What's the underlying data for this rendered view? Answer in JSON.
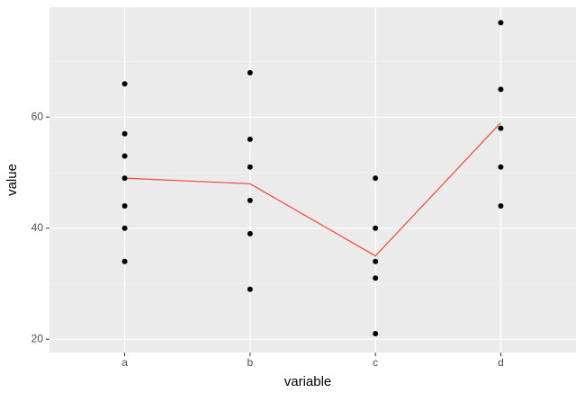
{
  "chart_data": {
    "type": "strip",
    "x_label": "variable",
    "y_label": "value",
    "categories": [
      "a",
      "b",
      "c",
      "d"
    ],
    "points": [
      [
        66,
        57,
        53,
        49,
        44,
        40,
        34
      ],
      [
        68,
        56,
        51,
        45,
        39,
        29
      ],
      [
        49,
        40,
        34,
        31,
        21
      ],
      [
        77,
        65,
        58,
        51,
        44
      ]
    ],
    "point_color": "#000000",
    "line": {
      "values": [
        49,
        48,
        35,
        59
      ],
      "color": "#f04a36"
    },
    "ylim": [
      17.6,
      79.8
    ],
    "yticks": [
      20,
      40,
      60
    ],
    "minor_yticks": [
      30,
      50,
      70
    ],
    "grid": true
  }
}
